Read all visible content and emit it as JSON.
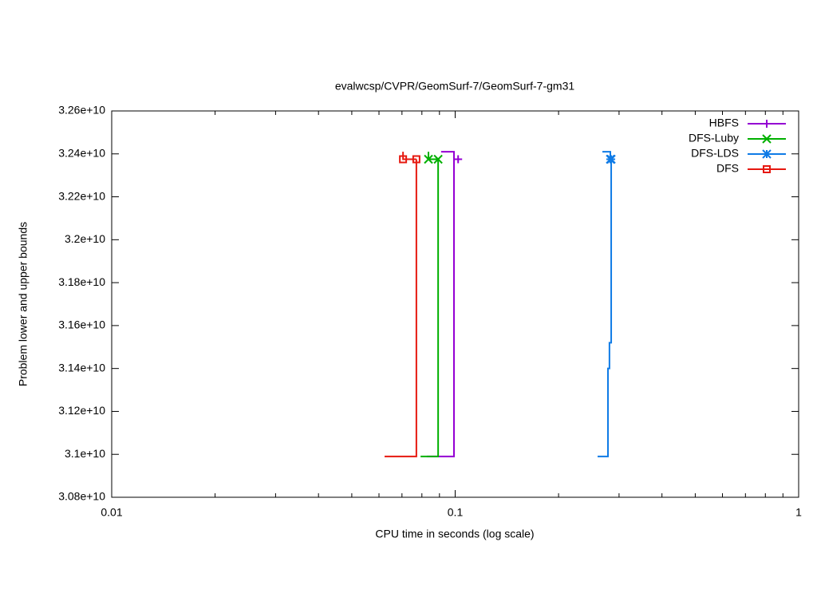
{
  "chart_data": {
    "type": "line",
    "title": "evalwcsp/CVPR/GeomSurf-7/GeomSurf-7-gm31",
    "x_label": "CPU time in seconds (log scale)",
    "y_label": "Problem lower and upper bounds",
    "x_log": true,
    "xlim": [
      0.01,
      1
    ],
    "xticks": [
      0.01,
      0.1,
      1
    ],
    "ylim": [
      30800000000,
      32600000000
    ],
    "yticks": [
      {
        "value": 30800000000,
        "label": "3.08e+10"
      },
      {
        "value": 31000000000,
        "label": "3.1e+10"
      },
      {
        "value": 31200000000,
        "label": "3.12e+10"
      },
      {
        "value": 31400000000,
        "label": "3.14e+10"
      },
      {
        "value": 31600000000,
        "label": "3.16e+10"
      },
      {
        "value": 31800000000,
        "label": "3.18e+10"
      },
      {
        "value": 32000000000,
        "label": "3.2e+10"
      },
      {
        "value": 32200000000,
        "label": "3.22e+10"
      },
      {
        "value": 32400000000,
        "label": "3.24e+10"
      },
      {
        "value": 32600000000,
        "label": "3.26e+10"
      }
    ],
    "legend": "top right",
    "series": [
      {
        "name": "HBFS",
        "color": "#9400d3",
        "marker": "plus",
        "x": [
          0.0827,
          0.0992,
          0.0992
        ],
        "values": [
          30990000000,
          30990000000,
          32375000000
        ],
        "upper_x": [
          0.091,
          0.0992,
          0.0992,
          0.102
        ],
        "upper_values": [
          32410000000,
          32410000000,
          32375000000,
          32375000000
        ],
        "point_x": [
          0.102
        ],
        "point_values": [
          32375000000
        ]
      },
      {
        "name": "DFS-Luby",
        "color": "#00b000",
        "marker": "cross",
        "x": [
          0.0793,
          0.0892,
          0.0892
        ],
        "values": [
          30990000000,
          30990000000,
          32375000000
        ],
        "upper_x": [
          0.0836,
          0.0836,
          0.0892
        ],
        "upper_values": [
          32410000000,
          32375000000,
          32375000000
        ],
        "point_x": [
          0.0836,
          0.0892
        ],
        "point_values": [
          32375000000,
          32375000000
        ]
      },
      {
        "name": "DFS-LDS",
        "color": "#0f7be6",
        "marker": "star",
        "x": [
          0.2598,
          0.2785,
          0.2785,
          0.2813,
          0.2813,
          0.2846,
          0.2846
        ],
        "values": [
          30990000000,
          30990000000,
          31400000000,
          31400000000,
          31520000000,
          31520000000,
          32375000000
        ],
        "upper_x": [
          0.2683,
          0.283,
          0.283
        ],
        "upper_values": [
          32410000000,
          32410000000,
          32375000000
        ],
        "point_x": [
          0.283,
          0.2846
        ],
        "point_values": [
          32375000000,
          32375000000
        ]
      },
      {
        "name": "DFS",
        "color": "#e6180f",
        "marker": "square",
        "x": [
          0.0623,
          0.0771,
          0.0771
        ],
        "values": [
          30990000000,
          30990000000,
          32375000000
        ],
        "upper_x": [
          0.0705,
          0.0705,
          0.0771
        ],
        "upper_values": [
          32410000000,
          32375000000,
          32375000000
        ],
        "point_x": [
          0.0705,
          0.0771
        ],
        "point_values": [
          32375000000,
          32375000000
        ]
      }
    ]
  }
}
